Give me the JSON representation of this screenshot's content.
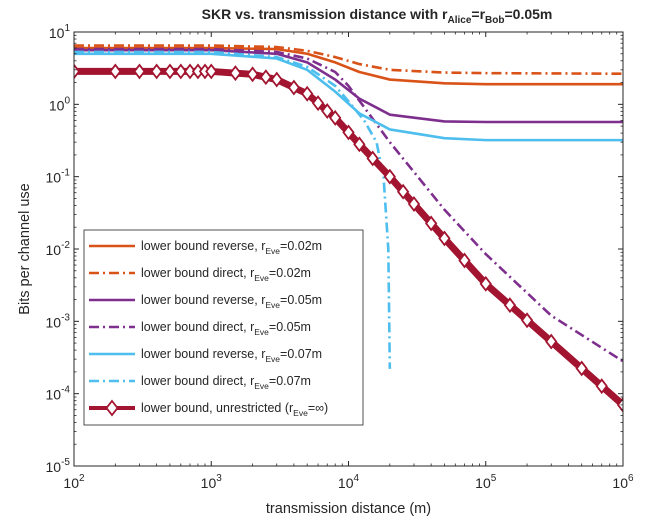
{
  "chart_data": {
    "type": "line",
    "title": {
      "main": "SKR vs. transmission distance with r",
      "sub1": "Alice",
      "mid": "=r",
      "sub2": "Bob",
      "end": "=0.05m"
    },
    "xlabel": "transmission distance (m)",
    "ylabel": "Bits per channel use",
    "xscale": "log",
    "yscale": "log",
    "xlim": [
      100,
      1000000
    ],
    "ylim": [
      1e-05,
      10
    ],
    "x_ticks": [
      {
        "base": "10",
        "exp": "2",
        "value": 100
      },
      {
        "base": "10",
        "exp": "3",
        "value": 1000
      },
      {
        "base": "10",
        "exp": "4",
        "value": 10000
      },
      {
        "base": "10",
        "exp": "5",
        "value": 100000
      },
      {
        "base": "10",
        "exp": "6",
        "value": 1000000
      }
    ],
    "y_ticks": [
      {
        "base": "10",
        "exp": "-5",
        "value": 1e-05
      },
      {
        "base": "10",
        "exp": "-4",
        "value": 0.0001
      },
      {
        "base": "10",
        "exp": "-3",
        "value": 0.001
      },
      {
        "base": "10",
        "exp": "-2",
        "value": 0.01
      },
      {
        "base": "10",
        "exp": "-1",
        "value": 0.1
      },
      {
        "base": "10",
        "exp": "0",
        "value": 1
      },
      {
        "base": "10",
        "exp": "1",
        "value": 10
      }
    ],
    "grid": false,
    "legend_position": "lower-left",
    "series": [
      {
        "name": "lower bound reverse, r",
        "sub": "Eve",
        "suffix": "=0.02m",
        "color": "#D95319",
        "style": "solid",
        "x": [
          100,
          1000,
          3000,
          5000,
          8000,
          12000,
          20000,
          50000,
          100000,
          1000000
        ],
        "y": [
          6.0,
          6.0,
          5.8,
          5.0,
          3.8,
          2.8,
          2.2,
          1.95,
          1.9,
          1.9
        ]
      },
      {
        "name": "lower bound direct, r",
        "sub": "Eve",
        "suffix": "=0.02m",
        "color": "#D95319",
        "style": "dashdot",
        "x": [
          100,
          1000,
          3000,
          5000,
          8000,
          12000,
          20000,
          50000,
          100000,
          1000000
        ],
        "y": [
          6.5,
          6.5,
          6.2,
          5.5,
          4.5,
          3.6,
          3.0,
          2.75,
          2.7,
          2.65
        ]
      },
      {
        "name": "lower bound reverse, r",
        "sub": "Eve",
        "suffix": "=0.05m",
        "color": "#7E2F8E",
        "style": "solid",
        "x": [
          100,
          1000,
          3000,
          5000,
          8000,
          12000,
          20000,
          50000,
          100000,
          1000000
        ],
        "y": [
          5.6,
          5.6,
          5.0,
          3.8,
          2.2,
          1.2,
          0.72,
          0.58,
          0.57,
          0.57
        ]
      },
      {
        "name": "lower bound direct, r",
        "sub": "Eve",
        "suffix": "=0.05m",
        "color": "#7E2F8E",
        "style": "dashdot",
        "x": [
          100,
          1000,
          3000,
          5000,
          8000,
          10000,
          20000,
          50000,
          100000,
          300000,
          1000000
        ],
        "y": [
          5.8,
          5.8,
          5.3,
          4.3,
          2.8,
          1.8,
          0.3,
          0.035,
          0.0085,
          0.0012,
          0.00028
        ]
      },
      {
        "name": "lower bound reverse, r",
        "sub": "Eve",
        "suffix": "=0.07m",
        "color": "#4DBEEE",
        "style": "solid",
        "x": [
          100,
          1000,
          3000,
          5000,
          8000,
          12000,
          20000,
          50000,
          100000,
          1000000
        ],
        "y": [
          5.0,
          5.0,
          4.3,
          3.0,
          1.5,
          0.75,
          0.45,
          0.34,
          0.32,
          0.32
        ]
      },
      {
        "name": "lower bound direct, r",
        "sub": "Eve",
        "suffix": "=0.07m",
        "color": "#4DBEEE",
        "style": "dashdot",
        "x": [
          100,
          1000,
          3000,
          5000,
          8000,
          10000,
          13000,
          16000,
          18000,
          19500,
          20000
        ],
        "y": [
          5.3,
          5.3,
          4.5,
          3.3,
          1.8,
          1.1,
          0.6,
          0.3,
          0.1,
          0.01,
          0.00022
        ]
      },
      {
        "name": "lower bound, unrestricted (r",
        "sub": "Eve",
        "suffix": "=∞)",
        "color": "#A2142F",
        "style": "solid-thick-diamond",
        "x": [
          100,
          1000,
          2000,
          3000,
          5000,
          8000,
          12000,
          20000,
          50000,
          100000,
          1000000
        ],
        "y": [
          2.85,
          2.85,
          2.6,
          2.2,
          1.4,
          0.65,
          0.28,
          0.1,
          0.014,
          0.0033,
          7e-05
        ]
      }
    ]
  }
}
